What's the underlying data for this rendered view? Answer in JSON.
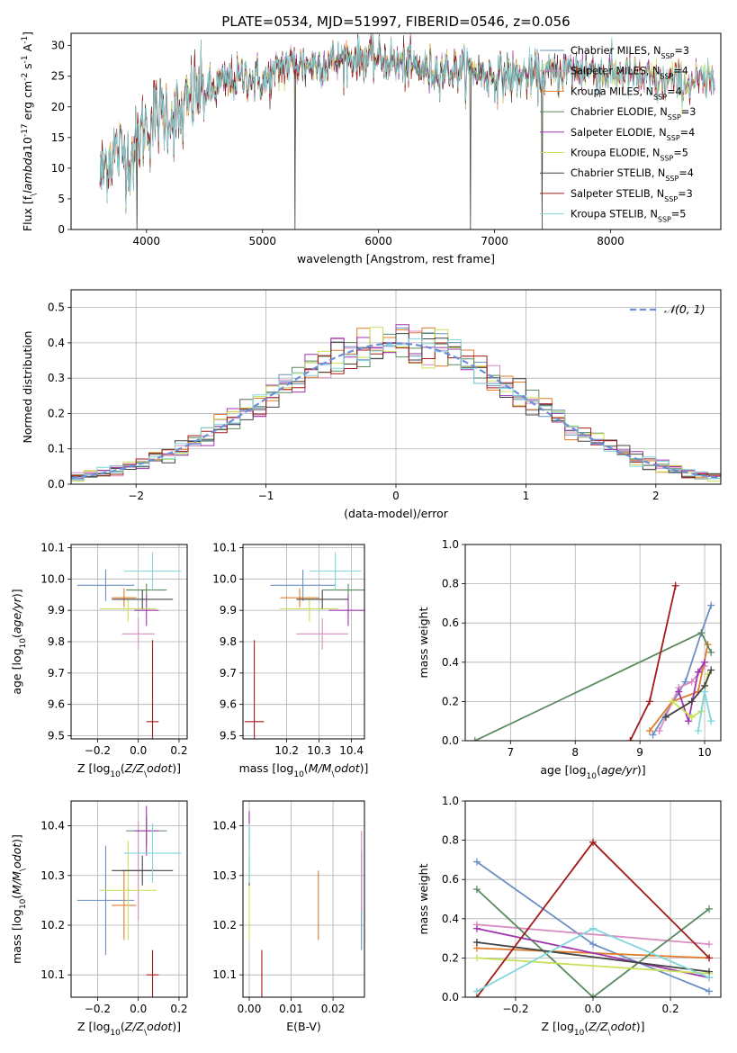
{
  "figure": {
    "title": "PLATE=0534, MJD=51997, FIBERID=0546, z=0.056"
  },
  "colors": {
    "cm": "#6a8fc3",
    "sm": "#d88cc0",
    "km": "#e07c2a",
    "ce": "#5a8a5f",
    "se": "#a033b0",
    "ke": "#c9e05a",
    "cs": "#444444",
    "ss": "#a01b1b",
    "ks": "#7fd6db",
    "gauss": "#6a8fd8"
  },
  "chart_data": [
    {
      "id": "spectrum",
      "type": "line",
      "xlabel": "wavelength [Angstrom, rest frame]",
      "ylabel": "Flux [f$_\\lambda$10$^{-17}$ erg cm$^{-2}$ s$^{-1}$ A$^{-1}$]",
      "xlim": [
        3350,
        8950
      ],
      "ylim": [
        0,
        32
      ],
      "xticks": [
        4000,
        5000,
        6000,
        7000,
        8000
      ],
      "yticks": [
        0,
        5,
        10,
        15,
        20,
        25,
        30
      ],
      "grid": false,
      "legend_placement": "top-right",
      "continuum": [
        [
          3600,
          8.5
        ],
        [
          3650,
          11
        ],
        [
          3750,
          13
        ],
        [
          3850,
          12
        ],
        [
          3900,
          13
        ],
        [
          3950,
          16
        ],
        [
          4000,
          17
        ],
        [
          4100,
          19
        ],
        [
          4200,
          19
        ],
        [
          4300,
          18
        ],
        [
          4400,
          22
        ],
        [
          4500,
          22.5
        ],
        [
          4700,
          24
        ],
        [
          4900,
          25
        ],
        [
          5000,
          24
        ],
        [
          5100,
          25
        ],
        [
          5200,
          27
        ],
        [
          5500,
          27
        ],
        [
          5800,
          28
        ],
        [
          6000,
          28
        ],
        [
          6200,
          27
        ],
        [
          6400,
          26
        ],
        [
          6600,
          26
        ],
        [
          6800,
          26
        ],
        [
          7000,
          25
        ],
        [
          7200,
          25
        ],
        [
          7400,
          25
        ],
        [
          7600,
          26
        ],
        [
          7800,
          26
        ],
        [
          8000,
          25.5
        ],
        [
          8200,
          25
        ],
        [
          8400,
          24
        ],
        [
          8900,
          24
        ]
      ],
      "spikes": [
        {
          "x": 3920,
          "y": 0
        },
        {
          "x": 5280,
          "y": 0
        },
        {
          "x": 6790,
          "y": 0
        },
        {
          "x": 7410,
          "y": 0
        }
      ],
      "series": [
        {
          "name": "Chabrier MILES, N$_{SSP}$=3"
        },
        {
          "name": "Salpeter MILES, N$_{SSP}$=4"
        },
        {
          "name": "Kroupa MILES, N$_{SSP}$=4"
        },
        {
          "name": "Chabrier ELODIE, N$_{SSP}$=3"
        },
        {
          "name": "Salpeter ELODIE, N$_{SSP}$=4"
        },
        {
          "name": "Kroupa ELODIE, N$_{SSP}$=5"
        },
        {
          "name": "Chabrier STELIB, N$_{SSP}$=4"
        },
        {
          "name": "Salpeter STELIB, N$_{SSP}$=3"
        },
        {
          "name": "Kroupa STELIB, N$_{SSP}$=5"
        }
      ]
    },
    {
      "id": "residuals",
      "type": "histogram",
      "xlabel": "(data-model)/error",
      "ylabel": "Normed distribution",
      "xlim": [
        -2.5,
        2.5
      ],
      "ylim": [
        0,
        0.55
      ],
      "xticks": [
        -2,
        -1,
        0,
        1,
        2
      ],
      "yticks": [
        0.0,
        0.1,
        0.2,
        0.3,
        0.4,
        0.5
      ],
      "grid": true,
      "legend_placement": "top-right",
      "legend": "$\\mathcal{N}(0,1)$",
      "bin_edges_start": -2.5,
      "bin_width": 0.1
    },
    {
      "id": "age-vs-Z",
      "type": "errorbar",
      "xlabel": "Z [log$_{10}$($Z/Z_\\odot$)]",
      "ylabel": "age  [log$_{10}$($age/yr$)]",
      "xlim": [
        -0.33,
        0.24
      ],
      "ylim": [
        9.49,
        10.11
      ],
      "xticks": [
        -0.2,
        0.0,
        0.2
      ],
      "yticks": [
        9.5,
        9.6,
        9.7,
        9.8,
        9.9,
        10.0,
        10.1
      ],
      "grid": true,
      "points": [
        {
          "key": "cm",
          "x": -0.16,
          "xerr": 0.14,
          "y": 9.98,
          "yerr": 0.05
        },
        {
          "key": "sm",
          "x": 0.0,
          "xerr": 0.08,
          "y": 9.825,
          "yerr": 0.05
        },
        {
          "key": "km",
          "x": -0.07,
          "xerr": 0.06,
          "y": 9.94,
          "yerr": 0.03
        },
        {
          "key": "ce",
          "x": 0.04,
          "xerr": 0.1,
          "y": 9.965,
          "yerr": 0.02
        },
        {
          "key": "se",
          "x": 0.04,
          "xerr": 0.06,
          "y": 9.9,
          "yerr": 0.05
        },
        {
          "key": "ke",
          "x": -0.05,
          "xerr": 0.14,
          "y": 9.905,
          "yerr": 0.04
        },
        {
          "key": "cs",
          "x": 0.02,
          "xerr": 0.15,
          "y": 9.935,
          "yerr": 0.03
        },
        {
          "key": "ss",
          "x": 0.07,
          "xerr": 0.03,
          "y": 9.545,
          "yerr": 0.26
        },
        {
          "key": "ks",
          "x": 0.07,
          "xerr": 0.14,
          "y": 10.025,
          "yerr": 0.06
        }
      ]
    },
    {
      "id": "age-vs-mass",
      "type": "errorbar",
      "xlabel": "mass [log$_{10}$($M/M_\\odot$)]",
      "ylabel": "",
      "xlim": [
        10.065,
        10.44
      ],
      "ylim": [
        9.49,
        10.11
      ],
      "xticks": [
        10.2,
        10.3,
        10.4
      ],
      "yticks": [
        9.5,
        9.6,
        9.7,
        9.8,
        9.9,
        10.0,
        10.1
      ],
      "grid": true,
      "points": [
        {
          "key": "cm",
          "x": 10.25,
          "xerr": 0.1,
          "y": 9.98,
          "yerr": 0.05
        },
        {
          "key": "sm",
          "x": 10.31,
          "xerr": 0.08,
          "y": 9.825,
          "yerr": 0.05
        },
        {
          "key": "km",
          "x": 10.24,
          "xerr": 0.06,
          "y": 9.94,
          "yerr": 0.03
        },
        {
          "key": "ce",
          "x": 10.39,
          "xerr": 0.08,
          "y": 9.965,
          "yerr": 0.02
        },
        {
          "key": "se",
          "x": 10.39,
          "xerr": 0.06,
          "y": 9.9,
          "yerr": 0.05
        },
        {
          "key": "ke",
          "x": 10.27,
          "xerr": 0.09,
          "y": 9.905,
          "yerr": 0.04
        },
        {
          "key": "cs",
          "x": 10.31,
          "xerr": 0.08,
          "y": 9.935,
          "yerr": 0.03
        },
        {
          "key": "ss",
          "x": 10.1,
          "xerr": 0.03,
          "y": 9.545,
          "yerr": 0.26
        },
        {
          "key": "ks",
          "x": 10.35,
          "xerr": 0.08,
          "y": 10.025,
          "yerr": 0.06
        }
      ]
    },
    {
      "id": "weight-vs-age",
      "type": "line",
      "xlabel": "age  [log$_{10}$($age/yr$)]",
      "ylabel": "mass weight",
      "xlim": [
        6.3,
        10.25
      ],
      "ylim": [
        0,
        1.0
      ],
      "xticks": [
        7,
        8,
        9,
        10
      ],
      "yticks": [
        0.0,
        0.2,
        0.4,
        0.6,
        0.8,
        1.0
      ],
      "grid": true,
      "series": [
        {
          "key": "cm",
          "points": [
            [
              9.2,
              0.03
            ],
            [
              9.7,
              0.3
            ],
            [
              9.95,
              0.55
            ],
            [
              10.1,
              0.69
            ]
          ]
        },
        {
          "key": "sm",
          "points": [
            [
              9.3,
              0.05
            ],
            [
              9.6,
              0.27
            ],
            [
              9.8,
              0.3
            ],
            [
              10.0,
              0.38
            ]
          ]
        },
        {
          "key": "km",
          "points": [
            [
              9.15,
              0.05
            ],
            [
              9.5,
              0.2
            ],
            [
              9.9,
              0.25
            ],
            [
              10.05,
              0.49
            ]
          ]
        },
        {
          "key": "ce",
          "points": [
            [
              6.45,
              0.0
            ],
            [
              9.95,
              0.55
            ],
            [
              10.1,
              0.45
            ]
          ]
        },
        {
          "key": "se",
          "points": [
            [
              9.6,
              0.25
            ],
            [
              9.75,
              0.1
            ],
            [
              9.9,
              0.35
            ],
            [
              10.0,
              0.4
            ]
          ]
        },
        {
          "key": "ke",
          "points": [
            [
              9.5,
              0.2
            ],
            [
              9.8,
              0.12
            ],
            [
              9.95,
              0.15
            ],
            [
              10.05,
              0.34
            ]
          ]
        },
        {
          "key": "cs",
          "points": [
            [
              9.4,
              0.12
            ],
            [
              9.8,
              0.2
            ],
            [
              10.0,
              0.28
            ],
            [
              10.1,
              0.36
            ]
          ]
        },
        {
          "key": "ss",
          "points": [
            [
              8.85,
              0.0
            ],
            [
              9.15,
              0.2
            ],
            [
              9.55,
              0.79
            ]
          ]
        },
        {
          "key": "ks",
          "points": [
            [
              9.9,
              0.05
            ],
            [
              10.0,
              0.25
            ],
            [
              10.1,
              0.1
            ]
          ]
        }
      ]
    },
    {
      "id": "mass-vs-Z",
      "type": "errorbar",
      "xlabel": "Z [log$_{10}$($Z/Z_\\odot$)]",
      "ylabel": "mass [log$_{10}$($M/M_\\odot$)]",
      "xlim": [
        -0.33,
        0.24
      ],
      "ylim": [
        10.055,
        10.45
      ],
      "xticks": [
        -0.2,
        0.0,
        0.2
      ],
      "yticks": [
        10.1,
        10.2,
        10.3,
        10.4
      ],
      "grid": true,
      "points": [
        {
          "key": "cm",
          "x": -0.16,
          "xerr": 0.14,
          "y": 10.25,
          "yerr": 0.11
        },
        {
          "key": "sm",
          "x": 0.0,
          "xerr": 0.08,
          "y": 10.31,
          "yerr": 0.1
        },
        {
          "key": "km",
          "x": -0.07,
          "xerr": 0.06,
          "y": 10.24,
          "yerr": 0.07
        },
        {
          "key": "ce",
          "x": 0.04,
          "xerr": 0.1,
          "y": 10.39,
          "yerr": 0.03
        },
        {
          "key": "se",
          "x": 0.04,
          "xerr": 0.06,
          "y": 10.39,
          "yerr": 0.05
        },
        {
          "key": "ke",
          "x": -0.05,
          "xerr": 0.14,
          "y": 10.27,
          "yerr": 0.1
        },
        {
          "key": "cs",
          "x": 0.02,
          "xerr": 0.15,
          "y": 10.31,
          "yerr": 0.03
        },
        {
          "key": "ss",
          "x": 0.07,
          "xerr": 0.03,
          "y": 10.1,
          "yerr": 0.05
        },
        {
          "key": "ks",
          "x": 0.07,
          "xerr": 0.14,
          "y": 10.345,
          "yerr": 0.06
        }
      ]
    },
    {
      "id": "mass-vs-ebv",
      "type": "errorbar",
      "xlabel": "E(B-V)",
      "ylabel": "",
      "xlim": [
        -0.0015,
        0.0275
      ],
      "ylim": [
        10.055,
        10.45
      ],
      "xticks": [
        0.0,
        0.01,
        0.02
      ],
      "yticks": [
        10.1,
        10.2,
        10.3,
        10.4
      ],
      "grid": true,
      "points": [
        {
          "key": "cm",
          "x": 0.0268,
          "y": 10.25,
          "yerr": 0.1
        },
        {
          "key": "sm",
          "x": 0.0268,
          "y": 10.31,
          "yerr": 0.08
        },
        {
          "key": "km",
          "x": 0.0165,
          "y": 10.24,
          "yerr": 0.07
        },
        {
          "key": "ce",
          "x": 0.0,
          "y": 10.39,
          "yerr": 0.03
        },
        {
          "key": "se",
          "x": 0.0,
          "y": 10.39,
          "yerr": 0.04
        },
        {
          "key": "ke",
          "x": 0.0,
          "y": 10.27,
          "yerr": 0.1
        },
        {
          "key": "cs",
          "x": 0.0,
          "y": 10.31,
          "yerr": 0.03
        },
        {
          "key": "ss",
          "x": 0.003,
          "y": 10.1,
          "yerr": 0.05
        },
        {
          "key": "ks",
          "x": 0.0,
          "y": 10.345,
          "yerr": 0.06
        }
      ]
    },
    {
      "id": "weight-vs-Z",
      "type": "line",
      "xlabel": "Z [log$_{10}$($Z/Z_\\odot$)]",
      "ylabel": "mass weight",
      "xlim": [
        -0.33,
        0.33
      ],
      "ylim": [
        0,
        1.0
      ],
      "xticks": [
        -0.2,
        0.0,
        0.2
      ],
      "yticks": [
        0.0,
        0.2,
        0.4,
        0.6,
        0.8,
        1.0
      ],
      "grid": true,
      "series": [
        {
          "key": "cm",
          "points": [
            [
              -0.3,
              0.69
            ],
            [
              0.0,
              0.27
            ],
            [
              0.3,
              0.03
            ]
          ]
        },
        {
          "key": "sm",
          "points": [
            [
              -0.3,
              0.37
            ],
            [
              0.3,
              0.27
            ]
          ]
        },
        {
          "key": "km",
          "points": [
            [
              -0.3,
              0.25
            ],
            [
              0.3,
              0.2
            ]
          ]
        },
        {
          "key": "ce",
          "points": [
            [
              -0.3,
              0.55
            ],
            [
              0.0,
              0.0
            ],
            [
              0.3,
              0.45
            ]
          ]
        },
        {
          "key": "se",
          "points": [
            [
              -0.3,
              0.35
            ],
            [
              0.3,
              0.1
            ]
          ]
        },
        {
          "key": "ke",
          "points": [
            [
              -0.3,
              0.2
            ],
            [
              0.3,
              0.12
            ]
          ]
        },
        {
          "key": "cs",
          "points": [
            [
              -0.3,
              0.28
            ],
            [
              0.3,
              0.13
            ]
          ]
        },
        {
          "key": "ss",
          "points": [
            [
              -0.3,
              0.0
            ],
            [
              0.0,
              0.79
            ],
            [
              0.3,
              0.2
            ]
          ]
        },
        {
          "key": "ks",
          "points": [
            [
              -0.3,
              0.03
            ],
            [
              0.0,
              0.35
            ],
            [
              0.3,
              0.1
            ]
          ]
        }
      ]
    }
  ]
}
